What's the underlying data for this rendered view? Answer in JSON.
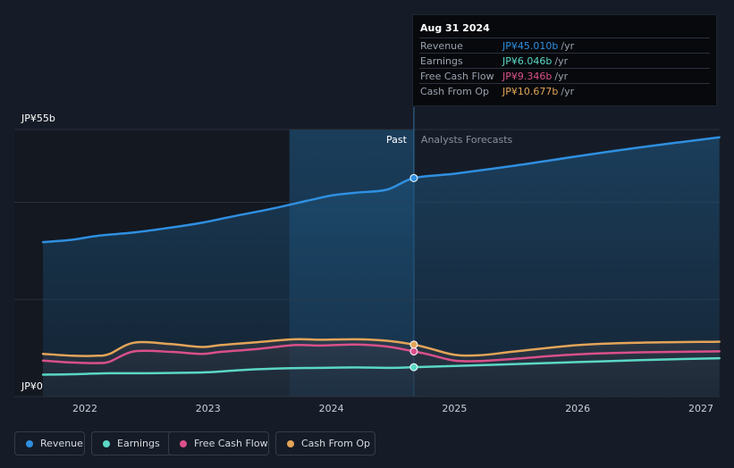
{
  "chart_data": {
    "type": "line",
    "title": "",
    "xlabel": "",
    "ylabel": "",
    "y_unit_labels": {
      "max": "JP¥55b",
      "min": "JP¥0"
    },
    "ylim": [
      0,
      55
    ],
    "xlim": [
      2021.6,
      2027.15
    ],
    "x_ticks": [
      "2022",
      "2023",
      "2024",
      "2025",
      "2026",
      "2027"
    ],
    "past_label": "Past",
    "forecast_label": "Analysts Forecasts",
    "past_end": 2024.67,
    "highlight_start": 2023.66,
    "series": [
      {
        "name": "Revenue",
        "color": "#2f8fe0",
        "x": [
          2021.66,
          2021.9,
          2022.1,
          2022.4,
          2022.7,
          2022.95,
          2023.2,
          2023.5,
          2023.8,
          2024.0,
          2024.2,
          2024.45,
          2024.67,
          2025.0,
          2025.5,
          2026.0,
          2026.5,
          2027.15
        ],
        "values": [
          31.8,
          32.3,
          33.1,
          33.8,
          34.8,
          35.8,
          37.1,
          38.6,
          40.3,
          41.4,
          42.0,
          42.6,
          45.0,
          45.9,
          47.6,
          49.5,
          51.3,
          53.4
        ]
      },
      {
        "name": "Earnings",
        "color": "#5ad8c5",
        "x": [
          2021.66,
          2021.9,
          2022.2,
          2022.5,
          2022.8,
          2023.0,
          2023.3,
          2023.6,
          2023.9,
          2024.2,
          2024.5,
          2024.67,
          2025.0,
          2025.5,
          2026.0,
          2026.5,
          2027.15
        ],
        "values": [
          4.5,
          4.6,
          4.8,
          4.8,
          4.9,
          5.0,
          5.5,
          5.8,
          5.9,
          6.0,
          5.9,
          6.05,
          6.3,
          6.7,
          7.1,
          7.5,
          7.9
        ]
      },
      {
        "name": "Free Cash Flow",
        "color": "#d9508a",
        "x": [
          2021.66,
          2021.9,
          2022.1,
          2022.2,
          2022.4,
          2022.7,
          2022.95,
          2023.1,
          2023.4,
          2023.7,
          2023.9,
          2024.2,
          2024.45,
          2024.67,
          2024.8,
          2025.0,
          2025.2,
          2025.5,
          2026.0,
          2026.5,
          2027.15
        ],
        "values": [
          7.4,
          7.0,
          6.9,
          7.2,
          9.3,
          9.2,
          8.8,
          9.2,
          9.8,
          10.6,
          10.5,
          10.7,
          10.3,
          9.3,
          8.6,
          7.4,
          7.3,
          7.8,
          8.7,
          9.1,
          9.3
        ]
      },
      {
        "name": "Cash From Op",
        "color": "#e3a458",
        "x": [
          2021.66,
          2021.9,
          2022.1,
          2022.2,
          2022.4,
          2022.7,
          2022.95,
          2023.1,
          2023.4,
          2023.7,
          2023.9,
          2024.2,
          2024.45,
          2024.67,
          2024.8,
          2025.0,
          2025.2,
          2025.5,
          2026.0,
          2026.5,
          2027.15
        ],
        "values": [
          8.8,
          8.4,
          8.4,
          8.8,
          11.1,
          10.8,
          10.2,
          10.6,
          11.2,
          11.8,
          11.7,
          11.8,
          11.5,
          10.7,
          9.9,
          8.6,
          8.5,
          9.3,
          10.6,
          11.1,
          11.3
        ]
      }
    ],
    "tooltip": {
      "date": "Aug 31 2024",
      "rows": [
        {
          "label": "Revenue",
          "value": "JP¥45.010b",
          "unit": "/yr",
          "color": "#2f8fe0"
        },
        {
          "label": "Earnings",
          "value": "JP¥6.046b",
          "unit": "/yr",
          "color": "#5ad8c5"
        },
        {
          "label": "Free Cash Flow",
          "value": "JP¥9.346b",
          "unit": "/yr",
          "color": "#d9508a"
        },
        {
          "label": "Cash From Op",
          "value": "JP¥10.677b",
          "unit": "/yr",
          "color": "#e3a458"
        }
      ]
    }
  },
  "legend": {
    "items": [
      {
        "label": "Revenue",
        "color": "#2f8fe0"
      },
      {
        "label": "Earnings",
        "color": "#5ad8c5"
      },
      {
        "label": "Free Cash Flow",
        "color": "#d9508a"
      },
      {
        "label": "Cash From Op",
        "color": "#e3a458"
      }
    ]
  }
}
